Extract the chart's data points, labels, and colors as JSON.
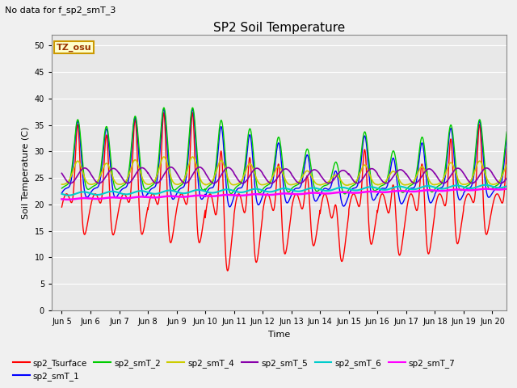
{
  "title": "SP2 Soil Temperature",
  "subtitle": "No data for f_sp2_smT_3",
  "xlabel": "Time",
  "ylabel": "Soil Temperature (C)",
  "tz_label": "TZ_osu",
  "ylim": [
    0,
    52
  ],
  "yticks": [
    0,
    5,
    10,
    15,
    20,
    25,
    30,
    35,
    40,
    45,
    50
  ],
  "xtick_labels": [
    "Jun 5",
    "Jun 6",
    "Jun 7",
    "Jun 8",
    "Jun 9",
    "Jun 10",
    "Jun 11",
    "Jun 12",
    "Jun 13",
    "Jun 14",
    "Jun 15",
    "Jun 16",
    "Jun 17",
    "Jun 18",
    "Jun 19",
    "Jun 20"
  ],
  "xtick_positions": [
    5,
    6,
    7,
    8,
    9,
    10,
    11,
    12,
    13,
    14,
    15,
    16,
    17,
    18,
    19,
    20
  ],
  "bg_color": "#f0f0f0",
  "plot_bg_color": "#e8e8e8",
  "series": {
    "sp2_Tsurface": {
      "color": "#ff0000",
      "lw": 1.0
    },
    "sp2_smT_1": {
      "color": "#0000ff",
      "lw": 1.0
    },
    "sp2_smT_2": {
      "color": "#00cc00",
      "lw": 1.0
    },
    "sp2_smT_4": {
      "color": "#cccc00",
      "lw": 1.2
    },
    "sp2_smT_5": {
      "color": "#8800aa",
      "lw": 1.2
    },
    "sp2_smT_6": {
      "color": "#00cccc",
      "lw": 1.5
    },
    "sp2_smT_7": {
      "color": "#ff00ff",
      "lw": 1.8
    }
  },
  "legend_entries": [
    "sp2_Tsurface",
    "sp2_smT_1",
    "sp2_smT_2",
    "sp2_smT_4",
    "sp2_smT_5",
    "sp2_smT_6",
    "sp2_smT_7"
  ]
}
